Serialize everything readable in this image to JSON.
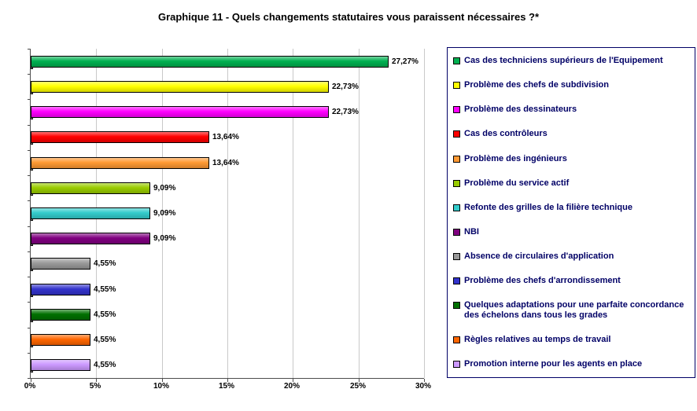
{
  "title": "Graphique 11 - Quels changements statutaires vous paraissent nécessaires ?*",
  "chart_data": {
    "type": "bar",
    "orientation": "horizontal",
    "title": "Graphique 11 - Quels changements statutaires vous paraissent nécessaires ?*",
    "xlabel": "",
    "ylabel": "",
    "xlim": [
      0,
      30
    ],
    "x_ticks": [
      "0%",
      "5%",
      "10%",
      "15%",
      "20%",
      "25%",
      "30%"
    ],
    "grid": true,
    "legend_position": "right",
    "categories": [
      "Cas des techniciens supérieurs de l'Equipement",
      "Problème des chefs de subdivision",
      "Problème des dessinateurs",
      "Cas des contrôleurs",
      "Problème des ingénieurs",
      "Problème du service actif",
      "Refonte des grilles de la filière technique",
      "NBI",
      "Absence de circulaires d'application",
      "Problème des chefs d'arrondissement",
      "Quelques adaptations pour une parfaite concordance des échelons dans tous les grades",
      "Règles relatives au temps de travail",
      "Promotion interne pour les agents en place"
    ],
    "values": [
      27.27,
      22.73,
      22.73,
      13.64,
      13.64,
      9.09,
      9.09,
      9.09,
      4.55,
      4.55,
      4.55,
      4.55,
      4.55
    ],
    "value_labels": [
      "27,27%",
      "22,73%",
      "22,73%",
      "13,64%",
      "13,64%",
      "9,09%",
      "9,09%",
      "9,09%",
      "4,55%",
      "4,55%",
      "4,55%",
      "4,55%",
      "4,55%"
    ],
    "colors": [
      "#00b050",
      "#ffff00",
      "#ff00ff",
      "#ff0000",
      "#ff9933",
      "#99cc00",
      "#33cccc",
      "#800080",
      "#999999",
      "#3333cc",
      "#007000",
      "#ff6600",
      "#cc99ff"
    ]
  }
}
